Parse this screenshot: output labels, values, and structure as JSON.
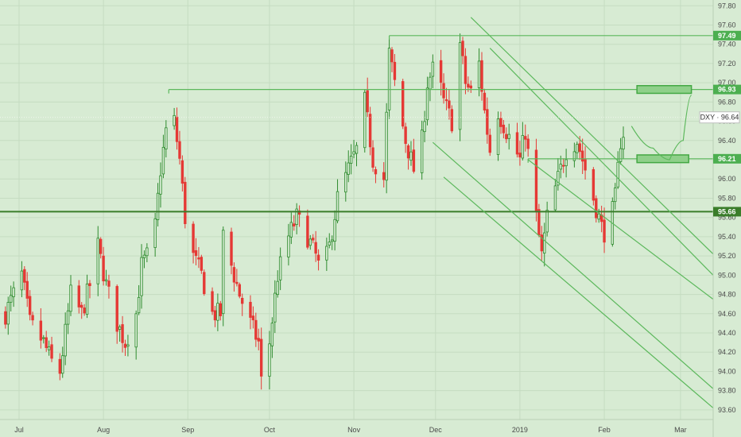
{
  "chart_data": {
    "type": "candlestick",
    "symbol_label": "DXY · 96.64",
    "last_price": 96.64,
    "ylim": [
      93.5,
      97.86
    ],
    "y_ticks": [
      93.6,
      93.8,
      94.0,
      94.2,
      94.4,
      94.6,
      94.8,
      95.0,
      95.2,
      95.4,
      95.6,
      95.8,
      96.0,
      96.2,
      96.4,
      96.6,
      96.8,
      97.0,
      97.2,
      97.4,
      97.6,
      97.8
    ],
    "x_range": [
      "2018-06-24",
      "2019-03-13"
    ],
    "x_tick_labels": [
      {
        "label": "Jul",
        "date": "2018-07-01"
      },
      {
        "label": "Aug",
        "date": "2018-08-01"
      },
      {
        "label": "Sep",
        "date": "2018-09-01"
      },
      {
        "label": "Oct",
        "date": "2018-10-01"
      },
      {
        "label": "Nov",
        "date": "2018-11-01"
      },
      {
        "label": "Dec",
        "date": "2018-12-01"
      },
      {
        "label": "2019",
        "date": "2019-01-01"
      },
      {
        "label": "Feb",
        "date": "2019-02-01"
      },
      {
        "label": "Mar",
        "date": "2019-03-01"
      }
    ],
    "price_waypoints": [
      [
        "2018-06-26",
        94.6
      ],
      [
        "2018-07-02",
        95.0
      ],
      [
        "2018-07-05",
        94.5
      ],
      [
        "2018-07-10",
        94.3
      ],
      [
        "2018-07-13",
        94.1
      ],
      [
        "2018-07-16",
        94.0
      ],
      [
        "2018-07-20",
        94.8
      ],
      [
        "2018-07-24",
        94.6
      ],
      [
        "2018-07-27",
        94.9
      ],
      [
        "2018-07-30",
        95.3
      ],
      [
        "2018-08-02",
        94.9
      ],
      [
        "2018-08-06",
        94.5
      ],
      [
        "2018-08-09",
        94.3
      ],
      [
        "2018-08-13",
        94.6
      ],
      [
        "2018-08-15",
        95.1
      ],
      [
        "2018-08-17",
        95.2
      ],
      [
        "2018-08-20",
        95.5
      ],
      [
        "2018-08-22",
        96.1
      ],
      [
        "2018-08-24",
        96.5
      ],
      [
        "2018-08-27",
        96.6
      ],
      [
        "2018-08-29",
        96.2
      ],
      [
        "2018-08-31",
        95.6
      ],
      [
        "2018-09-03",
        95.2
      ],
      [
        "2018-09-06",
        95.0
      ],
      [
        "2018-09-10",
        94.6
      ],
      [
        "2018-09-13",
        94.6
      ],
      [
        "2018-09-14",
        95.4
      ],
      [
        "2018-09-17",
        95.1
      ],
      [
        "2018-09-20",
        94.8
      ],
      [
        "2018-09-24",
        94.5
      ],
      [
        "2018-09-27",
        94.3
      ],
      [
        "2018-09-28",
        93.9
      ],
      [
        "2018-10-01",
        94.3
      ],
      [
        "2018-10-04",
        95.0
      ],
      [
        "2018-10-08",
        95.4
      ],
      [
        "2018-10-11",
        95.6
      ],
      [
        "2018-10-15",
        95.4
      ],
      [
        "2018-10-18",
        95.2
      ],
      [
        "2018-10-20",
        95.0
      ],
      [
        "2018-10-23",
        95.3
      ],
      [
        "2018-10-26",
        95.8
      ],
      [
        "2018-10-30",
        96.1
      ],
      [
        "2018-11-02",
        96.3
      ],
      [
        "2018-11-05",
        96.8
      ],
      [
        "2018-11-08",
        96.2
      ],
      [
        "2018-11-12",
        96.0
      ],
      [
        "2018-11-14",
        97.3
      ],
      [
        "2018-11-16",
        97.0
      ],
      [
        "2018-11-20",
        96.4
      ],
      [
        "2018-11-23",
        96.1
      ],
      [
        "2018-11-26",
        96.4
      ],
      [
        "2018-11-28",
        97.0
      ],
      [
        "2018-12-01",
        97.2
      ],
      [
        "2018-12-04",
        96.8
      ],
      [
        "2018-12-07",
        96.6
      ],
      [
        "2018-12-10",
        97.4
      ],
      [
        "2018-12-12",
        97.0
      ],
      [
        "2018-12-14",
        96.9
      ],
      [
        "2018-12-17",
        97.2
      ],
      [
        "2018-12-19",
        96.7
      ],
      [
        "2018-12-21",
        96.3
      ],
      [
        "2018-12-24",
        96.7
      ],
      [
        "2018-12-27",
        96.5
      ],
      [
        "2019-01-01",
        96.2
      ],
      [
        "2019-01-03",
        96.5
      ],
      [
        "2019-01-06",
        95.8
      ],
      [
        "2019-01-09",
        95.2
      ],
      [
        "2019-01-11",
        95.6
      ],
      [
        "2019-01-15",
        96.0
      ],
      [
        "2019-01-18",
        96.3
      ],
      [
        "2019-01-22",
        96.4
      ],
      [
        "2019-01-24",
        96.2
      ],
      [
        "2019-01-28",
        95.8
      ],
      [
        "2019-01-31",
        95.5
      ],
      [
        "2019-02-02",
        95.4
      ],
      [
        "2019-02-05",
        95.8
      ],
      [
        "2019-02-07",
        96.4
      ],
      [
        "2019-02-10",
        96.64
      ]
    ],
    "horizontal_levels": [
      {
        "label": "97.49",
        "value": 97.49,
        "from": "2018-11-14",
        "weight": "thin"
      },
      {
        "label": "96.93",
        "value": 96.93,
        "from": "2018-08-25",
        "weight": "thin"
      },
      {
        "label": "96.21",
        "value": 96.21,
        "from": "2019-01-04",
        "weight": "thin"
      },
      {
        "label": "95.66",
        "value": 95.66,
        "from": "2018-06-24",
        "weight": "thick"
      }
    ],
    "channel_lines": [
      {
        "start": [
          "2018-12-14",
          97.68
        ],
        "end": [
          "2019-03-13",
          95.22
        ]
      },
      {
        "start": [
          "2018-12-21",
          97.36
        ],
        "end": [
          "2019-03-13",
          95.0
        ]
      },
      {
        "start": [
          "2018-11-30",
          96.38
        ],
        "end": [
          "2019-03-13",
          93.82
        ]
      },
      {
        "start": [
          "2018-12-04",
          96.02
        ],
        "end": [
          "2019-03-13",
          93.62
        ]
      },
      {
        "start": [
          "2019-01-04",
          96.2
        ],
        "end": [
          "2019-03-13",
          94.75
        ]
      }
    ],
    "target_zones": [
      {
        "from": "2019-02-13",
        "to": "2019-03-05",
        "low": 96.89,
        "high": 96.97
      },
      {
        "from": "2019-02-13",
        "to": "2019-03-04",
        "low": 96.17,
        "high": 96.25
      }
    ],
    "projection_curve": [
      [
        "2019-02-11",
        96.55
      ],
      [
        "2019-02-19",
        96.32
      ],
      [
        "2019-02-25",
        96.2
      ],
      [
        "2019-03-02",
        96.4
      ],
      [
        "2019-03-05",
        96.87
      ]
    ],
    "grid": true,
    "colors": {
      "background": "#d7ebd3",
      "up_candle": "#2e8b2e",
      "down_candle": "#e53935",
      "trend_line": "#5cb85c",
      "level_tag": "#4caf50",
      "level_tag_thick": "#3a7d2a",
      "zone_fill": "#8fd08a",
      "zone_border": "#43a843"
    }
  }
}
